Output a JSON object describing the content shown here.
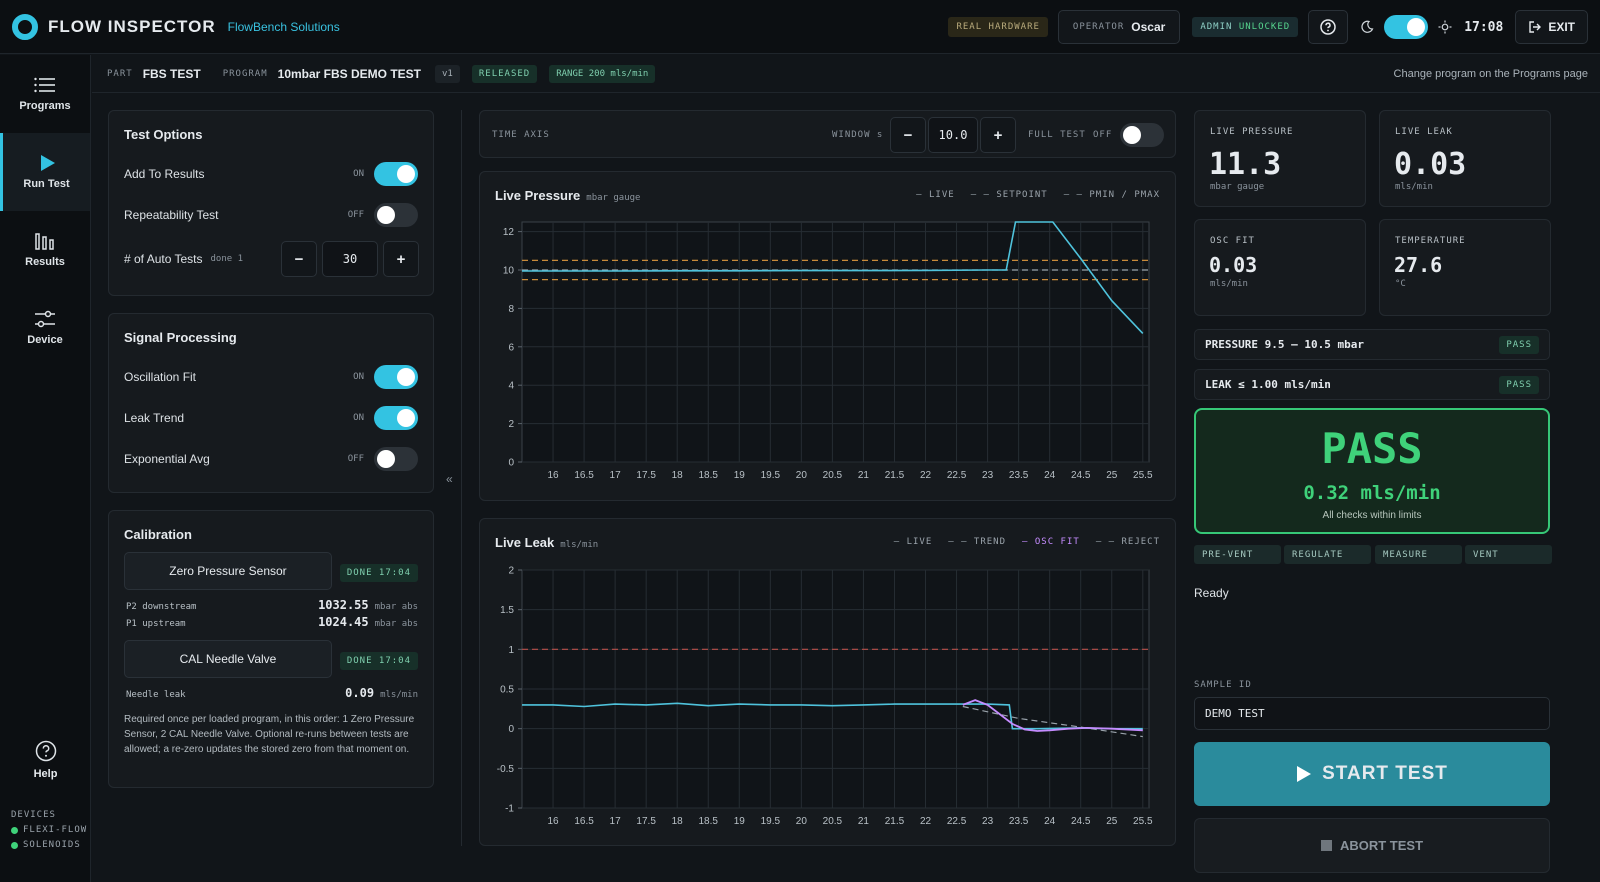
{
  "header": {
    "title": "FLOW INSPECTOR",
    "company": "FlowBench Solutions",
    "hardware_badge": "REAL HARDWARE",
    "operator_label": "OPERATOR",
    "operator_name": "Oscar",
    "admin_label": "ADMIN",
    "admin_state": "UNLOCKED",
    "clock": "17:08",
    "exit_label": "EXIT"
  },
  "sidebar": {
    "items": [
      {
        "label": "Programs",
        "icon": "list-icon"
      },
      {
        "label": "Run Test",
        "icon": "play-icon"
      },
      {
        "label": "Results",
        "icon": "bar-chart-icon"
      },
      {
        "label": "Device",
        "icon": "sliders-icon"
      }
    ],
    "help_label": "Help",
    "devices_label": "DEVICES",
    "devices": [
      "FLEXI-FLOW",
      "SOLENOIDS"
    ]
  },
  "subbar": {
    "part_label": "PART",
    "part_value": "FBS TEST",
    "program_label": "PROGRAM",
    "program_value": "10mbar FBS DEMO TEST",
    "version": "v1",
    "status": "RELEASED",
    "range": "RANGE 200 mls/min",
    "hint": "Change program on the Programs page"
  },
  "test_options": {
    "title": "Test Options",
    "add_to_results": {
      "label": "Add To Results",
      "state": "ON"
    },
    "repeatability": {
      "label": "Repeatability Test",
      "state": "OFF"
    },
    "auto_tests": {
      "label": "# of Auto Tests",
      "done": "done 1",
      "value": "30",
      "minus": "−",
      "plus": "+"
    }
  },
  "signal": {
    "title": "Signal Processing",
    "osc_fit": {
      "label": "Oscillation Fit",
      "state": "ON"
    },
    "leak_trend": {
      "label": "Leak Trend",
      "state": "ON"
    },
    "exp_avg": {
      "label": "Exponential Avg",
      "state": "OFF"
    }
  },
  "calibration": {
    "title": "Calibration",
    "zero_button": "Zero Pressure Sensor",
    "zero_done": "DONE 17:04",
    "p2_label": "P2 downstream",
    "p2_value": "1032.55",
    "p2_unit": "mbar abs",
    "p1_label": "P1 upstream",
    "p1_value": "1024.45",
    "p1_unit": "mbar abs",
    "needle_button": "CAL Needle Valve",
    "needle_done": "DONE 17:04",
    "needle_label": "Needle leak",
    "needle_value": "0.09",
    "needle_unit": "mls/min",
    "note": "Required once per loaded program, in this order: 1 Zero Pressure Sensor, 2 CAL Needle Valve. Optional re-runs between tests are allowed; a re-zero updates the stored zero from that moment on."
  },
  "time_axis": {
    "label": "TIME AXIS",
    "window_label": "WINDOW s",
    "window_value": "10.0",
    "full_test_label": "FULL TEST",
    "full_test_state": "OFF",
    "collapse": "«"
  },
  "chart_data": [
    {
      "type": "line",
      "title": "Live Pressure",
      "unit": "mbar gauge",
      "legend": [
        "— LIVE",
        "– – SETPOINT",
        "– – PMIN / PMAX"
      ],
      "xlim": [
        15.5,
        25.6
      ],
      "ylim": [
        0,
        12.5
      ],
      "xticks": [
        16,
        16.5,
        17,
        17.5,
        18,
        18.5,
        19,
        19.5,
        20,
        20.5,
        21,
        21.5,
        22,
        22.5,
        23,
        23.5,
        24,
        24.5,
        25,
        25.5
      ],
      "yticks": [
        0,
        2,
        4,
        6,
        8,
        10,
        12
      ],
      "setpoint": 10,
      "pmin": 9.5,
      "pmax": 10.5,
      "series": [
        {
          "name": "LIVE",
          "x": [
            15.5,
            16,
            17,
            18,
            19,
            20,
            21,
            22,
            23,
            23.3,
            23.45,
            24.05,
            24.5,
            25,
            25.5
          ],
          "y": [
            9.95,
            9.95,
            9.95,
            9.96,
            9.96,
            9.97,
            9.97,
            9.98,
            10.0,
            10.0,
            12.5,
            12.5,
            10.6,
            8.4,
            6.7
          ]
        }
      ]
    },
    {
      "type": "line",
      "title": "Live Leak",
      "unit": "mls/min",
      "legend": [
        "— LIVE",
        "– – TREND",
        "— OSC FIT",
        "– – REJECT"
      ],
      "xlim": [
        15.5,
        25.6
      ],
      "ylim": [
        -1,
        2
      ],
      "xticks": [
        16,
        16.5,
        17,
        17.5,
        18,
        18.5,
        19,
        19.5,
        20,
        20.5,
        21,
        21.5,
        22,
        22.5,
        23,
        23.5,
        24,
        24.5,
        25,
        25.5
      ],
      "yticks": [
        -1,
        -0.5,
        0,
        0.5,
        1,
        1.5,
        2
      ],
      "reject": 1,
      "series": [
        {
          "name": "LIVE",
          "x": [
            15.5,
            16,
            16.5,
            17,
            17.5,
            18,
            18.5,
            19,
            19.5,
            20,
            20.5,
            21,
            21.5,
            22,
            22.5,
            23,
            23.35,
            23.4,
            23.8,
            24.5,
            25,
            25.5
          ],
          "y": [
            0.3,
            0.3,
            0.28,
            0.31,
            0.3,
            0.32,
            0.29,
            0.31,
            0.3,
            0.3,
            0.29,
            0.3,
            0.31,
            0.31,
            0.31,
            0.31,
            0.3,
            0.0,
            0.0,
            0.01,
            0.0,
            0.0
          ]
        },
        {
          "name": "TREND",
          "x": [
            22.6,
            23.5,
            24.5,
            25.5
          ],
          "y": [
            0.28,
            0.13,
            0.02,
            -0.1
          ]
        },
        {
          "name": "OSC FIT",
          "x": [
            22.6,
            22.8,
            23.0,
            23.2,
            23.4,
            23.6,
            23.8,
            24.0,
            24.3,
            24.6,
            25.0,
            25.5
          ],
          "y": [
            0.3,
            0.36,
            0.3,
            0.18,
            0.06,
            -0.01,
            -0.03,
            -0.02,
            0.0,
            0.01,
            0.0,
            -0.02
          ]
        }
      ]
    }
  ],
  "metrics": {
    "live_pressure": {
      "label": "LIVE PRESSURE",
      "value": "11.3",
      "unit": "mbar gauge"
    },
    "live_leak": {
      "label": "LIVE LEAK",
      "value": "0.03",
      "unit": "mls/min"
    },
    "osc_fit": {
      "label": "OSC FIT",
      "value": "0.03",
      "unit": "mls/min"
    },
    "temperature": {
      "label": "TEMPERATURE",
      "value": "27.6",
      "unit": "°C"
    }
  },
  "checks": [
    {
      "label": "PRESSURE 9.5 – 10.5 mbar",
      "result": "PASS"
    },
    {
      "label": "LEAK ≤ 1.00 mls/min",
      "result": "PASS"
    }
  ],
  "verdict": {
    "result": "PASS",
    "value": "0.32 mls/min",
    "message": "All checks within limits"
  },
  "phases": [
    "PRE-VENT",
    "REGULATE",
    "MEASURE",
    "VENT"
  ],
  "status_text": "Ready",
  "sample": {
    "label": "SAMPLE ID",
    "value": "DEMO TEST"
  },
  "actions": {
    "start": "START TEST",
    "abort": "ABORT TEST"
  },
  "colors": {
    "accent": "#33c3e2",
    "pass": "#3fd27a",
    "live_line": "#4fc3dc",
    "limit_line": "#c98a3a",
    "reject_line": "#b8504a",
    "osc_line": "#c58cff"
  }
}
